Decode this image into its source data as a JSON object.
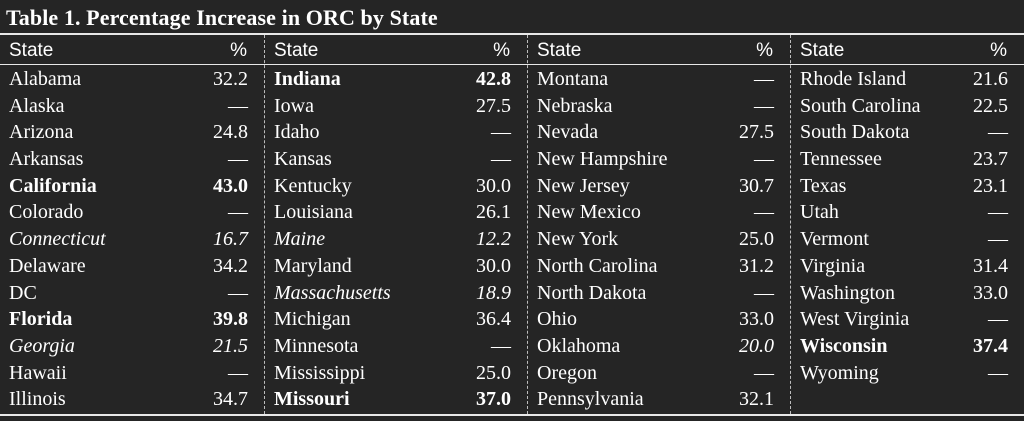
{
  "title": "Table 1. Percentage Increase in ORC by State",
  "header": {
    "state_label": "State",
    "pct_label": "%"
  },
  "columns": [
    {
      "rows": [
        {
          "state": "Alabama",
          "value": "32.2",
          "style": "normal"
        },
        {
          "state": "Alaska",
          "value": "—",
          "style": "normal"
        },
        {
          "state": "Arizona",
          "value": "24.8",
          "style": "normal"
        },
        {
          "state": "Arkansas",
          "value": "—",
          "style": "normal"
        },
        {
          "state": "California",
          "value": "43.0",
          "style": "bold"
        },
        {
          "state": "Colorado",
          "value": "—",
          "style": "normal"
        },
        {
          "state": "Connecticut",
          "value": "16.7",
          "style": "italic"
        },
        {
          "state": "Delaware",
          "value": "34.2",
          "style": "normal"
        },
        {
          "state": "DC",
          "value": "—",
          "style": "normal"
        },
        {
          "state": "Florida",
          "value": "39.8",
          "style": "bold"
        },
        {
          "state": "Georgia",
          "value": "21.5",
          "style": "italic"
        },
        {
          "state": "Hawaii",
          "value": "—",
          "style": "normal"
        },
        {
          "state": "Illinois",
          "value": "34.7",
          "style": "normal"
        }
      ]
    },
    {
      "rows": [
        {
          "state": "Indiana",
          "value": "42.8",
          "style": "bold"
        },
        {
          "state": "Iowa",
          "value": "27.5",
          "style": "normal"
        },
        {
          "state": "Idaho",
          "value": "—",
          "style": "normal"
        },
        {
          "state": "Kansas",
          "value": "—",
          "style": "normal"
        },
        {
          "state": "Kentucky",
          "value": "30.0",
          "style": "normal"
        },
        {
          "state": "Louisiana",
          "value": "26.1",
          "style": "normal"
        },
        {
          "state": "Maine",
          "value": "12.2",
          "style": "italic"
        },
        {
          "state": "Maryland",
          "value": "30.0",
          "style": "normal"
        },
        {
          "state": "Massachusetts",
          "value": "18.9",
          "style": "italic"
        },
        {
          "state": "Michigan",
          "value": "36.4",
          "style": "normal"
        },
        {
          "state": "Minnesota",
          "value": "—",
          "style": "normal"
        },
        {
          "state": "Mississippi",
          "value": "25.0",
          "style": "normal"
        },
        {
          "state": "Missouri",
          "value": "37.0",
          "style": "bold"
        }
      ]
    },
    {
      "rows": [
        {
          "state": "Montana",
          "value": "—",
          "style": "normal"
        },
        {
          "state": "Nebraska",
          "value": "—",
          "style": "normal"
        },
        {
          "state": "Nevada",
          "value": "27.5",
          "style": "normal"
        },
        {
          "state": "New Hampshire",
          "value": "—",
          "style": "normal"
        },
        {
          "state": "New Jersey",
          "value": "30.7",
          "style": "normal"
        },
        {
          "state": "New Mexico",
          "value": "—",
          "style": "normal"
        },
        {
          "state": "New York",
          "value": "25.0",
          "style": "normal"
        },
        {
          "state": "North Carolina",
          "value": "31.2",
          "style": "normal"
        },
        {
          "state": "North Dakota",
          "value": "—",
          "style": "normal"
        },
        {
          "state": "Ohio",
          "value": "33.0",
          "style": "normal"
        },
        {
          "state": "Oklahoma",
          "value": "20.0",
          "style": "italic-value"
        },
        {
          "state": "Oregon",
          "value": "—",
          "style": "normal"
        },
        {
          "state": "Pennsylvania",
          "value": "32.1",
          "style": "normal"
        }
      ]
    },
    {
      "rows": [
        {
          "state": "Rhode Island",
          "value": "21.6",
          "style": "normal"
        },
        {
          "state": "South Carolina",
          "value": "22.5",
          "style": "normal"
        },
        {
          "state": "South Dakota",
          "value": "—",
          "style": "normal"
        },
        {
          "state": "Tennessee",
          "value": "23.7",
          "style": "normal"
        },
        {
          "state": "Texas",
          "value": "23.1",
          "style": "normal"
        },
        {
          "state": "Utah",
          "value": "—",
          "style": "normal"
        },
        {
          "state": "Vermont",
          "value": "—",
          "style": "normal"
        },
        {
          "state": "Virginia",
          "value": "31.4",
          "style": "normal"
        },
        {
          "state": "Washington",
          "value": "33.0",
          "style": "normal"
        },
        {
          "state": "West Virginia",
          "value": "—",
          "style": "normal"
        },
        {
          "state": "Wisconsin",
          "value": "37.4",
          "style": "bold"
        },
        {
          "state": "Wyoming",
          "value": "—",
          "style": "normal"
        }
      ]
    }
  ]
}
